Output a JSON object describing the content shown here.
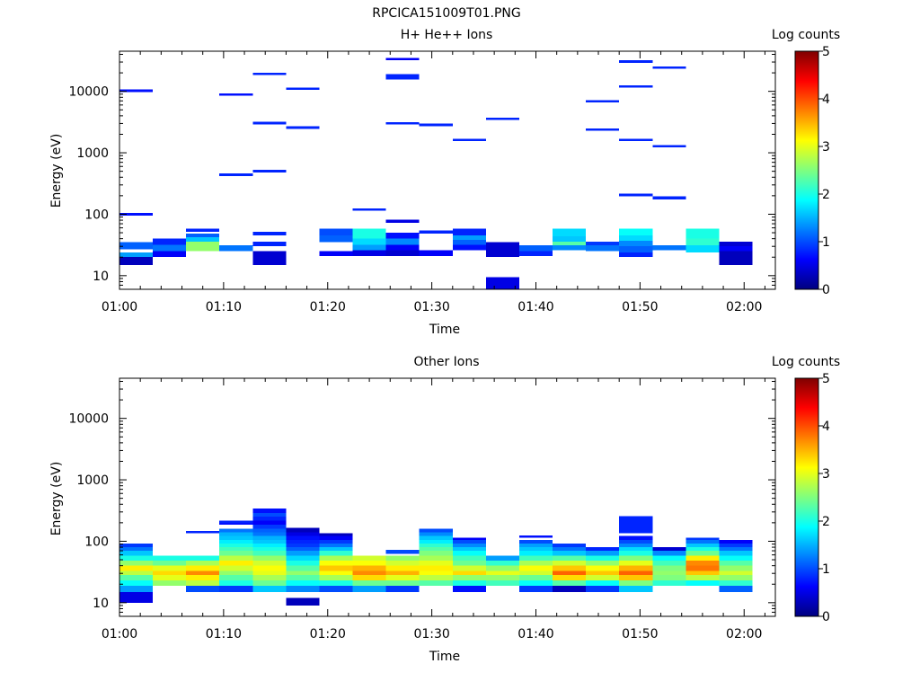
{
  "figure_title": "RPCICA151009T01.PNG",
  "colormap": [
    "#00007f",
    "#0000ff",
    "#007fff",
    "#00ffff",
    "#7fff7f",
    "#ffff00",
    "#ff7f00",
    "#ff0000",
    "#7f0000"
  ],
  "chart_data": [
    {
      "type": "heatmap",
      "title": "H+ He++ Ions",
      "xlabel": "Time",
      "ylabel": "Energy (eV)",
      "xticks": [
        "01:00",
        "01:10",
        "01:20",
        "01:30",
        "01:40",
        "01:50",
        "02:00"
      ],
      "xlim_minutes": [
        0,
        63
      ],
      "ylim": [
        6,
        45000
      ],
      "yscale": "log",
      "yticks": [
        "10",
        "100",
        "1000",
        "10000"
      ],
      "colorbar": {
        "label": "Log counts",
        "range": [
          0,
          5
        ],
        "ticks": [
          "0",
          "1",
          "2",
          "3",
          "4",
          "5"
        ]
      },
      "cells": [
        [
          0,
          3.2,
          15,
          20,
          0.3
        ],
        [
          0,
          3.2,
          20,
          24,
          1.4
        ],
        [
          0,
          3.2,
          27,
          35,
          1.1
        ],
        [
          0,
          3.2,
          95,
          105,
          0.7
        ],
        [
          0,
          3.2,
          9800,
          10800,
          0.7
        ],
        [
          3.2,
          6.4,
          20,
          25,
          0.6
        ],
        [
          3.2,
          6.4,
          25,
          32,
          1.2
        ],
        [
          3.2,
          6.4,
          32,
          40,
          0.8
        ],
        [
          6.4,
          9.6,
          25,
          36,
          2.6
        ],
        [
          6.4,
          9.6,
          36,
          42,
          1.6
        ],
        [
          6.4,
          9.6,
          42,
          48,
          1.1
        ],
        [
          6.4,
          9.6,
          52,
          58,
          0.8
        ],
        [
          9.6,
          12.8,
          25,
          31,
          1.2
        ],
        [
          9.6,
          12.8,
          8500,
          9300,
          0.7
        ],
        [
          9.6,
          12.8,
          420,
          460,
          0.8
        ],
        [
          12.8,
          16,
          15,
          25,
          0.4
        ],
        [
          12.8,
          16,
          30,
          36,
          0.8
        ],
        [
          12.8,
          16,
          45,
          52,
          0.8
        ],
        [
          12.8,
          16,
          480,
          530,
          0.8
        ],
        [
          12.8,
          16,
          2900,
          3200,
          0.8
        ],
        [
          12.8,
          16,
          18500,
          20000,
          0.8
        ],
        [
          16,
          19.2,
          2450,
          2700,
          0.8
        ],
        [
          16,
          19.2,
          10500,
          11500,
          0.8
        ],
        [
          19.2,
          22.4,
          21,
          25,
          0.6
        ],
        [
          19.2,
          22.4,
          35,
          45,
          1.1
        ],
        [
          19.2,
          22.4,
          45,
          58,
          1.0
        ],
        [
          22.4,
          25.6,
          21,
          26,
          0.5
        ],
        [
          22.4,
          25.6,
          26,
          32,
          1.4
        ],
        [
          22.4,
          25.6,
          32,
          40,
          1.7
        ],
        [
          22.4,
          25.6,
          40,
          58,
          2.0
        ],
        [
          22.4,
          25.6,
          115,
          125,
          0.8
        ],
        [
          25.6,
          28.8,
          21,
          26,
          0.4
        ],
        [
          25.6,
          28.8,
          26,
          32,
          0.6
        ],
        [
          25.6,
          28.8,
          32,
          40,
          1.3
        ],
        [
          25.6,
          28.8,
          40,
          50,
          0.7
        ],
        [
          25.6,
          28.8,
          72,
          82,
          0.5
        ],
        [
          25.6,
          28.8,
          2900,
          3150,
          0.8
        ],
        [
          25.6,
          28.8,
          17000,
          19000,
          0.8
        ],
        [
          25.6,
          28.8,
          32000,
          35000,
          0.6
        ],
        [
          25.6,
          28.8,
          15500,
          17000,
          0.8
        ],
        [
          28.8,
          32,
          21,
          26,
          0.6
        ],
        [
          28.8,
          32,
          48,
          54,
          0.8
        ],
        [
          28.8,
          32,
          2700,
          3000,
          0.8
        ],
        [
          32,
          35.2,
          26,
          32,
          0.7
        ],
        [
          32,
          35.2,
          32,
          38,
          1.1
        ],
        [
          32,
          35.2,
          38,
          45,
          1.4
        ],
        [
          32,
          35.2,
          45,
          58,
          0.8
        ],
        [
          32,
          35.2,
          1550,
          1700,
          0.8
        ],
        [
          35.2,
          38.4,
          6,
          9.5,
          0.5
        ],
        [
          35.2,
          38.4,
          20,
          26,
          0.4
        ],
        [
          35.2,
          38.4,
          26,
          35,
          0.4
        ],
        [
          35.2,
          38.4,
          3400,
          3700,
          0.8
        ],
        [
          38.4,
          41.6,
          21,
          25,
          0.8
        ],
        [
          38.4,
          41.6,
          25,
          31,
          1.1
        ],
        [
          41.6,
          44.8,
          26,
          31,
          1.3
        ],
        [
          41.6,
          44.8,
          31,
          36,
          2.3
        ],
        [
          41.6,
          44.8,
          36,
          44,
          1.6
        ],
        [
          41.6,
          44.8,
          44,
          58,
          1.7
        ],
        [
          44.8,
          48,
          25,
          31,
          1.2
        ],
        [
          44.8,
          48,
          31,
          36,
          0.9
        ],
        [
          44.8,
          48,
          2300,
          2500,
          0.8
        ],
        [
          44.8,
          48,
          6600,
          7200,
          0.8
        ],
        [
          48,
          51.2,
          20,
          24,
          0.8
        ],
        [
          48,
          51.2,
          24,
          30,
          1.1
        ],
        [
          48,
          51.2,
          30,
          37,
          1.3
        ],
        [
          48,
          51.2,
          37,
          45,
          1.7
        ],
        [
          48,
          51.2,
          45,
          58,
          1.9
        ],
        [
          48,
          51.2,
          195,
          215,
          0.8
        ],
        [
          48,
          51.2,
          1550,
          1700,
          0.8
        ],
        [
          48,
          51.2,
          11500,
          12600,
          0.8
        ],
        [
          48,
          51.2,
          29000,
          32000,
          0.8
        ],
        [
          51.2,
          54.4,
          26,
          31,
          1.2
        ],
        [
          51.2,
          54.4,
          175,
          195,
          0.8
        ],
        [
          51.2,
          54.4,
          1230,
          1340,
          0.8
        ],
        [
          51.2,
          54.4,
          23500,
          25500,
          0.8
        ],
        [
          54.4,
          57.6,
          24,
          31,
          1.7
        ],
        [
          54.4,
          57.6,
          31,
          40,
          2.1
        ],
        [
          54.4,
          57.6,
          40,
          58,
          2.0
        ],
        [
          57.6,
          60.8,
          15,
          25,
          0.3
        ],
        [
          57.6,
          60.8,
          25,
          30,
          0.6
        ],
        [
          57.6,
          60.8,
          30,
          36,
          0.4
        ]
      ]
    },
    {
      "type": "heatmap",
      "title": "Other Ions",
      "xlabel": "Time",
      "ylabel": "Energy (eV)",
      "xticks": [
        "01:00",
        "01:10",
        "01:20",
        "01:30",
        "01:40",
        "01:50",
        "02:00"
      ],
      "xlim_minutes": [
        0,
        63
      ],
      "ylim": [
        6,
        45000
      ],
      "yscale": "log",
      "yticks": [
        "10",
        "100",
        "1000",
        "10000"
      ],
      "colorbar": {
        "label": "Log counts",
        "range": [
          0,
          5
        ],
        "ticks": [
          "0",
          "1",
          "2",
          "3",
          "4",
          "5"
        ]
      },
      "columns": [
        {
          "t0": 0,
          "edges": [
            10,
            15,
            19,
            23,
            28,
            33,
            40,
            48,
            58,
            70,
            80,
            92
          ],
          "vals": [
            0.5,
            1.4,
            1.9,
            2.3,
            2.8,
            3.2,
            2.6,
            2.0,
            1.6,
            1.2,
            0.9
          ]
        },
        {
          "t0": 3.2,
          "edges": [
            19,
            23,
            28,
            33,
            40,
            48,
            58
          ],
          "vals": [
            2.6,
            3.0,
            3.3,
            3.0,
            2.4,
            2.0
          ]
        },
        {
          "t0": 6.4,
          "edges": [
            15,
            19,
            23,
            28,
            33,
            40,
            48,
            58,
            135,
            148
          ],
          "vals": [
            1.0,
            2.8,
            3.2,
            3.7,
            3.2,
            2.7,
            2.0,
            null,
            0.8
          ]
        },
        {
          "t0": 9.6,
          "edges": [
            15,
            19,
            23,
            28,
            33,
            40,
            48,
            58,
            70,
            80,
            92,
            105,
            122,
            140,
            160,
            185,
            198,
            215
          ],
          "vals": [
            0.9,
            2.0,
            2.3,
            2.6,
            2.9,
            3.2,
            2.8,
            2.4,
            2.2,
            2.0,
            1.8,
            1.6,
            1.5,
            1.2,
            null,
            0.7,
            0.8
          ]
        },
        {
          "t0": 12.8,
          "edges": [
            15,
            19,
            23,
            28,
            33,
            40,
            48,
            58,
            70,
            80,
            92,
            105,
            122,
            140,
            160,
            185,
            215,
            250,
            290,
            340
          ],
          "vals": [
            1.6,
            2.4,
            2.7,
            3.0,
            3.1,
            2.9,
            2.6,
            2.2,
            2.0,
            1.8,
            1.6,
            1.5,
            1.2,
            1.1,
            0.9,
            0.6,
            0.8,
            1.0,
            0.7
          ]
        },
        {
          "t0": 16,
          "edges": [
            9,
            12,
            15,
            19,
            23,
            28,
            33,
            40,
            48,
            58,
            70,
            80,
            92,
            105,
            122,
            140,
            165
          ],
          "vals": [
            0.3,
            null,
            1.3,
            1.9,
            2.3,
            2.6,
            2.3,
            2.0,
            1.7,
            1.4,
            1.1,
            0.9,
            0.8,
            0.7,
            0.5,
            0.3
          ]
        },
        {
          "t0": 19.2,
          "edges": [
            15,
            19,
            23,
            28,
            33,
            40,
            48,
            58,
            70,
            80,
            92,
            105,
            122,
            135
          ],
          "vals": [
            1.0,
            2.0,
            2.7,
            3.1,
            3.4,
            3.1,
            2.7,
            2.1,
            1.6,
            1.2,
            0.9,
            0.6,
            0.3
          ]
        },
        {
          "t0": 22.4,
          "edges": [
            15,
            19,
            23,
            28,
            33,
            40,
            48,
            58
          ],
          "vals": [
            1.4,
            2.4,
            3.3,
            3.7,
            3.5,
            3.1,
            2.9
          ]
        },
        {
          "t0": 25.6,
          "edges": [
            15,
            19,
            23,
            28,
            33,
            40,
            48,
            58,
            62,
            72
          ],
          "vals": [
            0.9,
            2.4,
            3.0,
            3.5,
            3.2,
            2.9,
            2.6,
            null,
            1.0
          ]
        },
        {
          "t0": 28.8,
          "edges": [
            19,
            23,
            28,
            33,
            40,
            48,
            58,
            70,
            80,
            92,
            105,
            122,
            140,
            160
          ],
          "vals": [
            2.3,
            2.8,
            3.1,
            3.2,
            3.0,
            2.7,
            2.5,
            2.3,
            2.1,
            1.8,
            1.6,
            1.3,
            1.0
          ]
        },
        {
          "t0": 32,
          "edges": [
            15,
            19,
            23,
            28,
            33,
            40,
            48,
            58,
            70,
            80,
            92,
            105,
            115
          ],
          "vals": [
            0.7,
            2.0,
            2.6,
            3.3,
            2.9,
            2.4,
            2.2,
            1.9,
            1.6,
            1.3,
            1.0,
            0.6
          ]
        },
        {
          "t0": 35.2,
          "edges": [
            19,
            23,
            28,
            33,
            40,
            48,
            58
          ],
          "vals": [
            2.2,
            2.6,
            3.0,
            2.6,
            2.1,
            1.4
          ]
        },
        {
          "t0": 38.4,
          "edges": [
            15,
            19,
            23,
            28,
            33,
            40,
            48,
            58,
            70,
            80,
            92,
            105,
            115,
            125,
            135
          ],
          "vals": [
            0.9,
            1.9,
            2.4,
            2.9,
            3.1,
            2.7,
            2.2,
            1.8,
            1.6,
            1.4,
            1.0,
            null,
            0.7
          ]
        },
        {
          "t0": 41.6,
          "edges": [
            15,
            19,
            23,
            28,
            33,
            40,
            48,
            58,
            70,
            80,
            92
          ],
          "vals": [
            0.3,
            2.3,
            3.3,
            3.9,
            3.4,
            2.9,
            2.3,
            1.6,
            1.2,
            0.9
          ]
        },
        {
          "t0": 44.8,
          "edges": [
            15,
            19,
            23,
            28,
            33,
            40,
            48,
            58,
            70,
            80
          ],
          "vals": [
            0.9,
            1.9,
            2.9,
            3.4,
            3.1,
            2.6,
            2.0,
            1.4,
            0.8
          ]
        },
        {
          "t0": 48,
          "edges": [
            15,
            19,
            23,
            28,
            33,
            40,
            48,
            58,
            70,
            80,
            92,
            105,
            122,
            135,
            255,
            275
          ],
          "vals": [
            1.6,
            2.5,
            3.4,
            3.9,
            3.5,
            3.0,
            2.5,
            2.0,
            1.7,
            1.3,
            1.0,
            0.7,
            null,
            0.8
          ]
        },
        {
          "t0": 51.2,
          "edges": [
            19,
            23,
            28,
            33,
            40,
            48,
            58,
            70,
            80
          ],
          "vals": [
            2.1,
            2.5,
            2.6,
            2.5,
            2.2,
            1.9,
            1.3,
            0.4
          ]
        },
        {
          "t0": 54.4,
          "edges": [
            19,
            23,
            28,
            33,
            40,
            48,
            58,
            70,
            80,
            92,
            105,
            115
          ],
          "vals": [
            1.9,
            2.8,
            3.4,
            3.8,
            3.7,
            3.2,
            2.4,
            2.0,
            1.6,
            1.2,
            0.9
          ]
        },
        {
          "t0": 57.6,
          "edges": [
            15,
            19,
            23,
            28,
            33,
            40,
            48,
            58,
            70,
            80,
            92,
            105
          ],
          "vals": [
            1.1,
            2.1,
            2.6,
            2.9,
            2.6,
            2.3,
            1.9,
            1.6,
            1.2,
            0.9,
            0.6
          ]
        }
      ]
    }
  ]
}
